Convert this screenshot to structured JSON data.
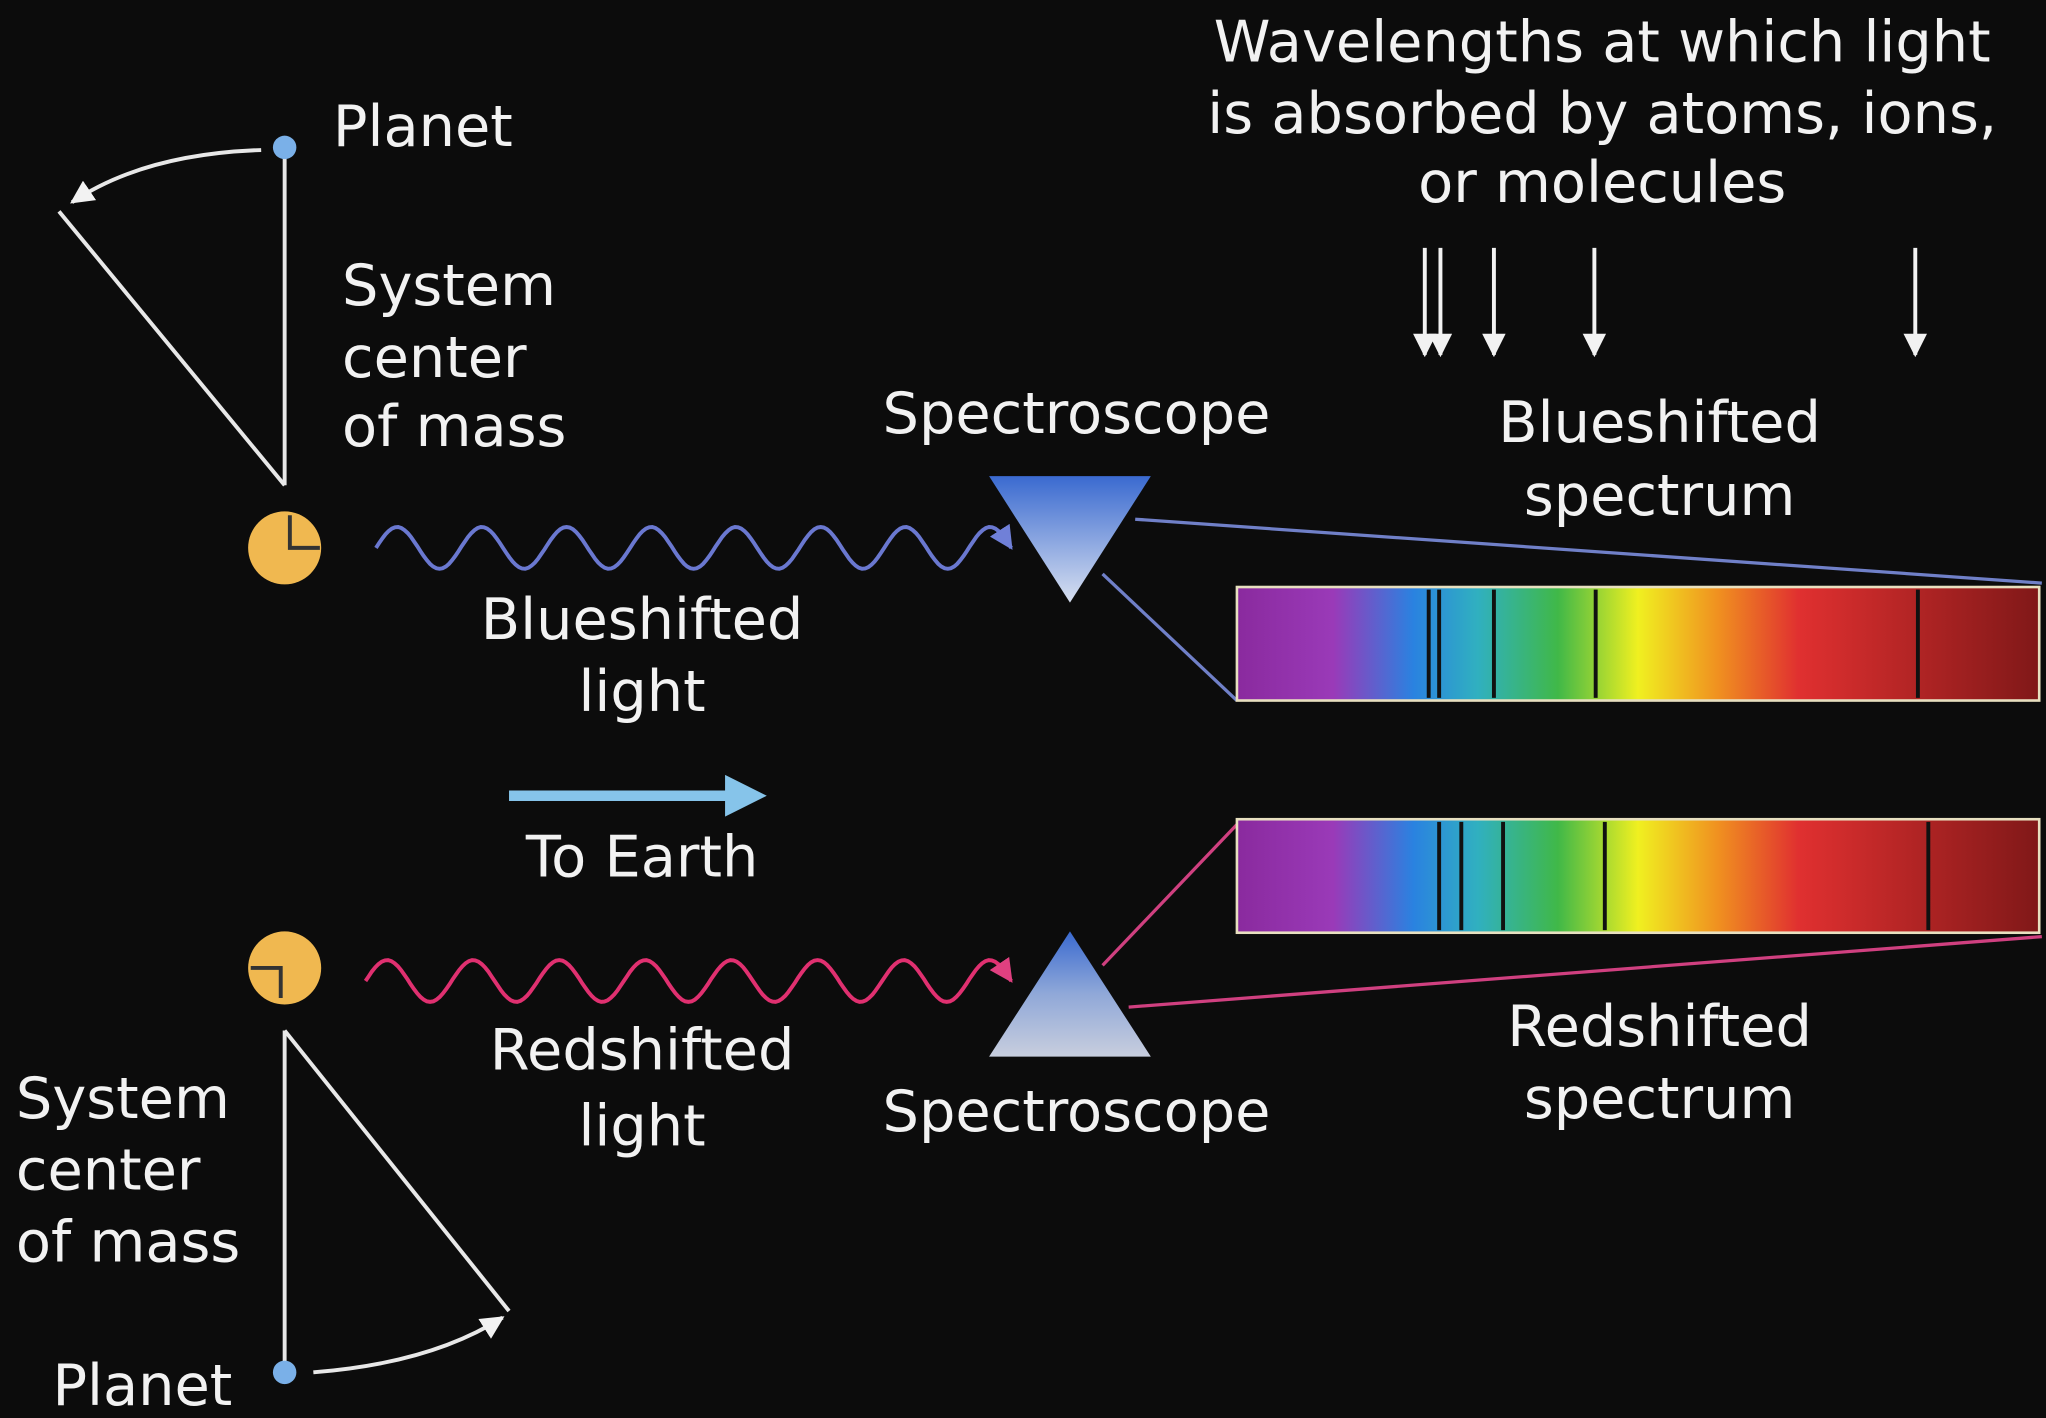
{
  "absorption_note": {
    "lines": [
      "Wavelengths at which light",
      "is absorbed by atoms, ions,",
      "or molecules"
    ]
  },
  "top": {
    "planet": "Planet",
    "center_of_mass": [
      "System",
      "center",
      "of mass"
    ],
    "light": [
      "Blueshifted",
      "light"
    ],
    "spectroscope": "Spectroscope",
    "spectrum": [
      "Blueshifted",
      "spectrum"
    ]
  },
  "to_earth": "To Earth",
  "bottom": {
    "planet": "Planet",
    "center_of_mass": [
      "System",
      "center",
      "of mass"
    ],
    "light": [
      "Redshifted",
      "light"
    ],
    "spectroscope": "Spectroscope",
    "spectrum": [
      "Redshifted",
      "spectrum"
    ]
  }
}
